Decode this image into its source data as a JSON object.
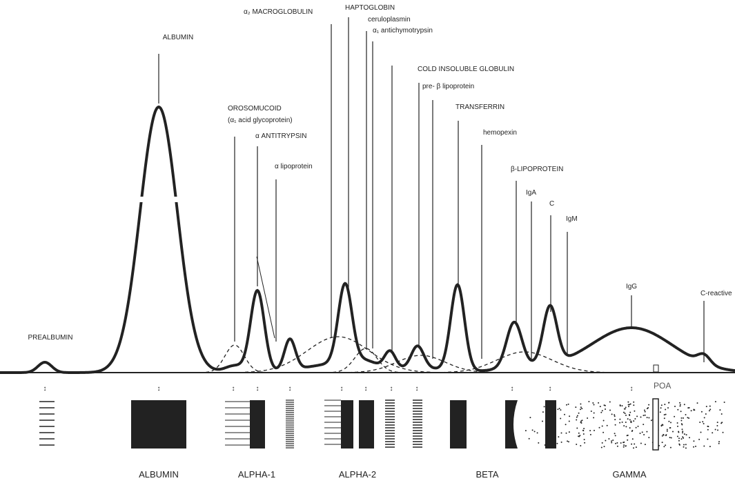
{
  "labels": [
    "ALBUMIN",
    "PREALBUMIN",
    "OROSOMUCOID",
    "(α₁ acid glycoprotein)",
    "α ANTITRYPSIN",
    "α  lipoprotein",
    "α₂ MACROGLOBULIN",
    "HAPTOGLOBIN",
    "ceruloplasmin",
    "α₁ antichymotrypsin",
    "COLD INSOLUBLE GLOBULIN",
    "pre- β  lipoprotein",
    "TRANSFERRIN",
    "hemopexin",
    "β-LIPOPROTEIN",
    "IgA",
    "C",
    "IgM",
    "IgG",
    "C-reactive",
    "POA"
  ],
  "regions": [
    "ALBUMIN",
    "ALPHA-1",
    "ALPHA-2",
    "BETA",
    "GAMMA"
  ]
}
